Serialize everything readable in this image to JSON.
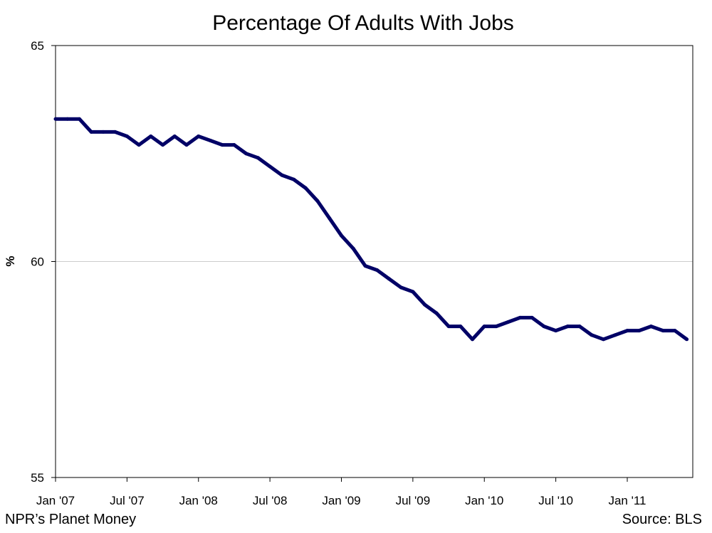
{
  "chart_data": {
    "type": "line",
    "title": "Percentage Of Adults With Jobs",
    "xlabel": "",
    "ylabel": "%",
    "ylim": [
      55,
      65
    ],
    "yticks": [
      55,
      60,
      65
    ],
    "grid": "horizontal at 60",
    "x_tick_labels": [
      "Jan '07",
      "Jul '07",
      "Jan '08",
      "Jul '08",
      "Jan '09",
      "Jul '09",
      "Jan '10",
      "Jul '10",
      "Jan '11"
    ],
    "line_color": "#000066",
    "series": [
      {
        "x": [
          "2007-01",
          "2007-02",
          "2007-03",
          "2007-04",
          "2007-05",
          "2007-06",
          "2007-07",
          "2007-08",
          "2007-09",
          "2007-10",
          "2007-11",
          "2007-12",
          "2008-01",
          "2008-02",
          "2008-03",
          "2008-04",
          "2008-05",
          "2008-06",
          "2008-07",
          "2008-08",
          "2008-09",
          "2008-10",
          "2008-11",
          "2008-12",
          "2009-01",
          "2009-02",
          "2009-03",
          "2009-04",
          "2009-05",
          "2009-06",
          "2009-07",
          "2009-08",
          "2009-09",
          "2009-10",
          "2009-11",
          "2009-12",
          "2010-01",
          "2010-02",
          "2010-03",
          "2010-04",
          "2010-05",
          "2010-06",
          "2010-07",
          "2010-08",
          "2010-09",
          "2010-10",
          "2010-11",
          "2010-12",
          "2011-01",
          "2011-02",
          "2011-03",
          "2011-04",
          "2011-05",
          "2011-06"
        ],
        "values": [
          63.3,
          63.3,
          63.3,
          63.0,
          63.0,
          63.0,
          62.9,
          62.7,
          62.9,
          62.7,
          62.9,
          62.7,
          62.9,
          62.8,
          62.7,
          62.7,
          62.5,
          62.4,
          62.2,
          62.0,
          61.9,
          61.7,
          61.4,
          61.0,
          60.6,
          60.3,
          59.9,
          59.8,
          59.6,
          59.4,
          59.3,
          59.0,
          58.8,
          58.5,
          58.5,
          58.2,
          58.5,
          58.5,
          58.6,
          58.7,
          58.7,
          58.5,
          58.4,
          58.5,
          58.5,
          58.3,
          58.2,
          58.3,
          58.4,
          58.4,
          58.5,
          58.4,
          58.4,
          58.2
        ]
      }
    ]
  },
  "footer": {
    "credit": "NPR’s Planet Money",
    "source": "Source: BLS"
  }
}
